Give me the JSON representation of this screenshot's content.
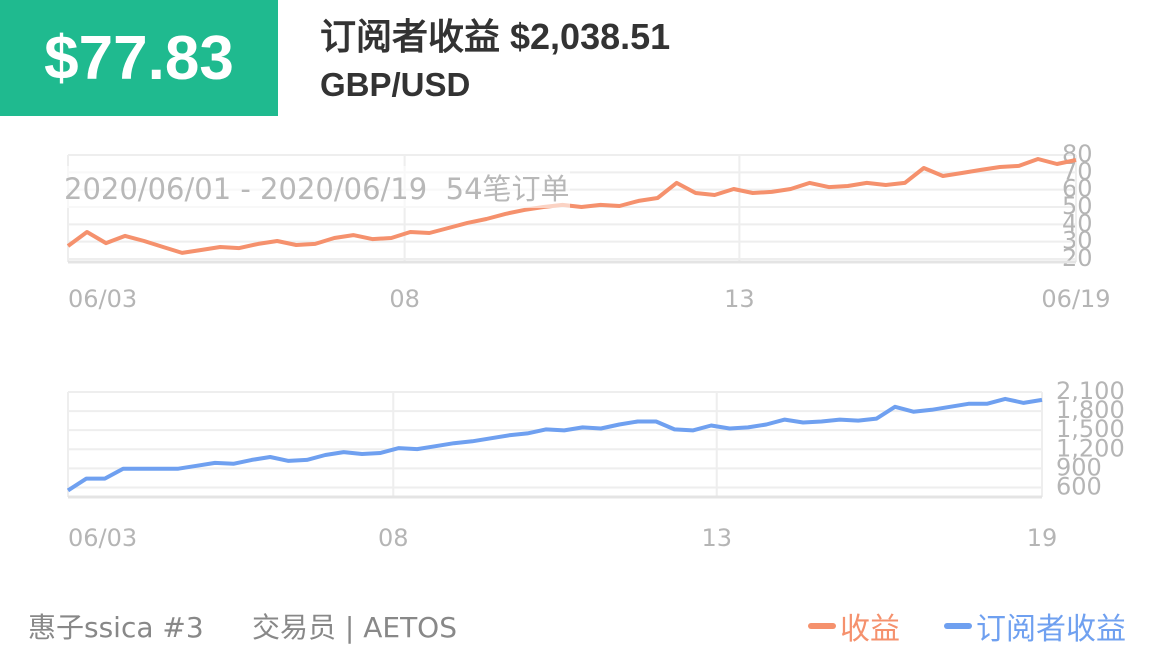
{
  "header": {
    "badge": "$77.83",
    "title": "订阅者收益 $2,038.51",
    "pair": "GBP/USD",
    "subtitle": "2020/06/01 - 2020/06/19  54笔订单"
  },
  "chart_data": [
    {
      "type": "line",
      "grid": true,
      "series": [
        {
          "name": "收益",
          "color": "#f5916d",
          "values": [
            27.5,
            35.6,
            29.2,
            33.3,
            30.4,
            26.9,
            23.5,
            25.2,
            26.9,
            26.3,
            28.7,
            30.4,
            28.1,
            28.7,
            32.1,
            33.8,
            31.5,
            32.1,
            35.6,
            35.0,
            37.9,
            40.8,
            43.1,
            46.0,
            48.3,
            50.0,
            51.2,
            50.0,
            51.2,
            50.6,
            53.5,
            55.2,
            63.9,
            58.1,
            56.9,
            60.4,
            58.1,
            58.7,
            60.4,
            63.9,
            61.5,
            62.1,
            63.9,
            62.7,
            63.9,
            72.5,
            67.9,
            69.6,
            71.4,
            73.1,
            73.7,
            77.7,
            74.8,
            77.1
          ]
        }
      ],
      "xlim": [
        0,
        53
      ],
      "xticks": [
        {
          "value": 0,
          "label": "06/03"
        },
        {
          "value": 17.7,
          "label": "08"
        },
        {
          "value": 35.3,
          "label": "13"
        },
        {
          "value": 53,
          "label": "06/19"
        }
      ],
      "ylim": [
        20,
        80
      ],
      "yticks": [
        20,
        30,
        40,
        50,
        60,
        70,
        80
      ]
    },
    {
      "type": "line",
      "grid": true,
      "series": [
        {
          "name": "订阅者收益",
          "color": "#6fa0f0",
          "values": [
            554,
            739,
            739,
            894,
            894,
            894,
            894,
            940,
            986,
            971,
            1033,
            1079,
            1017,
            1033,
            1110,
            1156,
            1126,
            1141,
            1218,
            1203,
            1249,
            1296,
            1326,
            1373,
            1419,
            1450,
            1512,
            1496,
            1543,
            1527,
            1589,
            1636,
            1636,
            1512,
            1496,
            1574,
            1527,
            1543,
            1589,
            1666,
            1620,
            1636,
            1666,
            1651,
            1682,
            1867,
            1790,
            1821,
            1867,
            1914,
            1914,
            1991,
            1929,
            1976
          ]
        }
      ],
      "xlim": [
        0,
        53
      ],
      "xticks": [
        {
          "value": 0,
          "label": "06/03"
        },
        {
          "value": 17.7,
          "label": "08"
        },
        {
          "value": 35.3,
          "label": "13"
        },
        {
          "value": 53,
          "label": "19"
        }
      ],
      "ylim": [
        450,
        2100
      ],
      "yticks": [
        600,
        900,
        {
          "value": 1200,
          "label": "1,200"
        },
        {
          "value": 1500,
          "label": "1,500"
        },
        {
          "value": 1800,
          "label": "1,800"
        },
        {
          "value": 2100,
          "label": "2,100"
        }
      ]
    }
  ],
  "footer": {
    "user": "惠子ssica #3",
    "role": "交易员 | AETOS"
  }
}
